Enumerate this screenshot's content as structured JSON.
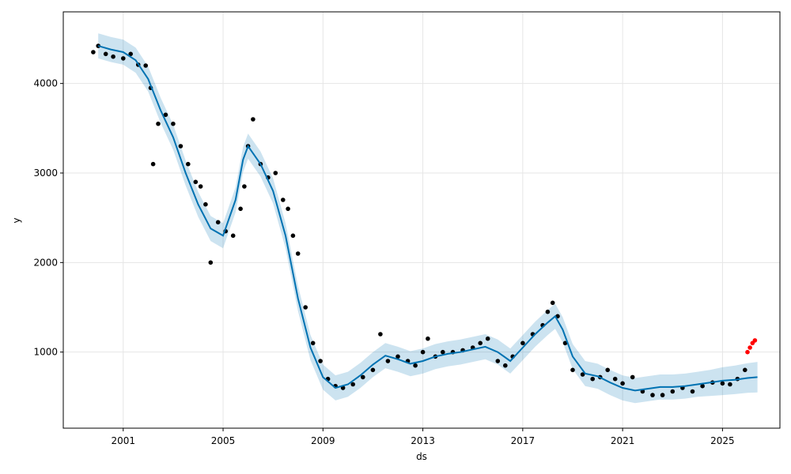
{
  "chart_data": {
    "type": "scatter",
    "xlabel": "ds",
    "ylabel": "y",
    "xlim": [
      1998.6,
      2027.3
    ],
    "ylim": [
      150,
      4800
    ],
    "grid": true,
    "x_ticks": [
      2001,
      2005,
      2009,
      2013,
      2017,
      2021,
      2025
    ],
    "x_tick_labels": [
      "2001",
      "2005",
      "2009",
      "2013",
      "2017",
      "2021",
      "2025"
    ],
    "y_ticks": [
      1000,
      2000,
      3000,
      4000
    ],
    "y_tick_labels": [
      "1000",
      "2000",
      "3000",
      "4000"
    ],
    "colors": {
      "observed": "#000000",
      "forecast_line": "#0072B2",
      "uncertainty_band": "#0072B2",
      "recent_points": "#ff0000",
      "grid": "#e6e6e6"
    },
    "series": [
      {
        "role": "forecast",
        "x": [
          2000.0,
          2000.5,
          2001.0,
          2001.5,
          2002.0,
          2002.5,
          2003.0,
          2003.5,
          2004.0,
          2004.5,
          2005.0,
          2005.5,
          2005.8,
          2006.0,
          2006.5,
          2007.0,
          2007.5,
          2008.0,
          2008.5,
          2009.0,
          2009.5,
          2010.0,
          2010.5,
          2011.0,
          2011.5,
          2012.0,
          2012.5,
          2013.0,
          2013.5,
          2014.0,
          2014.5,
          2015.0,
          2015.5,
          2016.0,
          2016.5,
          2017.0,
          2017.5,
          2018.0,
          2018.3,
          2018.6,
          2019.0,
          2019.5,
          2020.0,
          2020.5,
          2021.0,
          2021.5,
          2022.0,
          2022.5,
          2023.0,
          2023.5,
          2024.0,
          2024.5,
          2025.0,
          2025.5,
          2026.0,
          2026.4
        ],
        "y": [
          4420,
          4380,
          4350,
          4260,
          4050,
          3700,
          3400,
          3000,
          2650,
          2380,
          2300,
          2700,
          3150,
          3300,
          3100,
          2800,
          2300,
          1600,
          1050,
          720,
          600,
          640,
          740,
          860,
          960,
          920,
          870,
          900,
          950,
          980,
          1000,
          1030,
          1060,
          1000,
          900,
          1050,
          1200,
          1330,
          1400,
          1250,
          950,
          760,
          730,
          660,
          600,
          570,
          590,
          610,
          610,
          620,
          640,
          660,
          680,
          690,
          710,
          720
        ]
      },
      {
        "role": "uncertainty",
        "x": [
          2000.0,
          2000.5,
          2001.0,
          2001.5,
          2002.0,
          2002.5,
          2003.0,
          2003.5,
          2004.0,
          2004.5,
          2005.0,
          2005.5,
          2005.8,
          2006.0,
          2006.5,
          2007.0,
          2007.5,
          2008.0,
          2008.5,
          2009.0,
          2009.5,
          2010.0,
          2010.5,
          2011.0,
          2011.5,
          2012.0,
          2012.5,
          2013.0,
          2013.5,
          2014.0,
          2014.5,
          2015.0,
          2015.5,
          2016.0,
          2016.5,
          2017.0,
          2017.5,
          2018.0,
          2018.3,
          2018.6,
          2019.0,
          2019.5,
          2020.0,
          2020.5,
          2021.0,
          2021.5,
          2022.0,
          2022.5,
          2023.0,
          2023.5,
          2024.0,
          2024.5,
          2025.0,
          2025.5,
          2026.0,
          2026.4
        ],
        "lower": [
          4280,
          4240,
          4210,
          4120,
          3910,
          3560,
          3260,
          2860,
          2510,
          2240,
          2160,
          2560,
          3010,
          3160,
          2960,
          2660,
          2160,
          1460,
          910,
          580,
          460,
          500,
          600,
          720,
          820,
          780,
          730,
          760,
          810,
          840,
          860,
          890,
          920,
          860,
          760,
          910,
          1060,
          1190,
          1260,
          1110,
          810,
          620,
          590,
          520,
          460,
          430,
          450,
          470,
          470,
          480,
          500,
          510,
          520,
          530,
          545,
          550
        ],
        "upper": [
          4560,
          4520,
          4490,
          4400,
          4190,
          3840,
          3540,
          3140,
          2790,
          2520,
          2440,
          2840,
          3290,
          3440,
          3240,
          2940,
          2440,
          1740,
          1190,
          860,
          740,
          780,
          880,
          1000,
          1100,
          1060,
          1010,
          1040,
          1090,
          1120,
          1140,
          1170,
          1200,
          1140,
          1040,
          1190,
          1340,
          1470,
          1540,
          1390,
          1090,
          900,
          870,
          800,
          740,
          710,
          730,
          750,
          750,
          760,
          780,
          800,
          830,
          850,
          875,
          890
        ]
      },
      {
        "role": "observed",
        "x": [
          1999.8,
          2000.0,
          2000.3,
          2000.6,
          2001.0,
          2001.3,
          2001.6,
          2001.9,
          2002.1,
          2002.2,
          2002.4,
          2002.7,
          2003.0,
          2003.3,
          2003.6,
          2003.9,
          2004.1,
          2004.3,
          2004.5,
          2004.8,
          2005.1,
          2005.4,
          2005.7,
          2005.85,
          2006.0,
          2006.2,
          2006.5,
          2006.8,
          2007.1,
          2007.4,
          2007.6,
          2007.8,
          2008.0,
          2008.3,
          2008.6,
          2008.9,
          2009.2,
          2009.5,
          2009.8,
          2010.2,
          2010.6,
          2011.0,
          2011.3,
          2011.6,
          2012.0,
          2012.4,
          2012.7,
          2013.0,
          2013.2,
          2013.5,
          2013.8,
          2014.2,
          2014.6,
          2015.0,
          2015.3,
          2015.6,
          2016.0,
          2016.3,
          2016.6,
          2017.0,
          2017.4,
          2017.8,
          2018.0,
          2018.2,
          2018.4,
          2018.7,
          2019.0,
          2019.4,
          2019.8,
          2020.1,
          2020.4,
          2020.7,
          2021.0,
          2021.4,
          2021.8,
          2022.2,
          2022.6,
          2023.0,
          2023.4,
          2023.8,
          2024.2,
          2024.6,
          2025.0,
          2025.3,
          2025.6,
          2025.9
        ],
        "y": [
          4350,
          4420,
          4330,
          4300,
          4280,
          4330,
          4210,
          4200,
          3950,
          3100,
          3550,
          3650,
          3550,
          3300,
          3100,
          2900,
          2850,
          2650,
          2000,
          2450,
          2350,
          2300,
          2600,
          2850,
          3300,
          3600,
          3100,
          2950,
          3000,
          2700,
          2600,
          2300,
          2100,
          1500,
          1100,
          900,
          700,
          620,
          600,
          640,
          720,
          800,
          1200,
          900,
          950,
          900,
          850,
          1000,
          1150,
          950,
          1000,
          1000,
          1020,
          1050,
          1100,
          1150,
          900,
          850,
          950,
          1100,
          1200,
          1300,
          1450,
          1550,
          1400,
          1100,
          800,
          750,
          700,
          720,
          800,
          700,
          650,
          720,
          560,
          520,
          520,
          560,
          600,
          560,
          620,
          660,
          650,
          640,
          700,
          800
        ]
      },
      {
        "role": "recent",
        "x": [
          2026.0,
          2026.1,
          2026.2,
          2026.3
        ],
        "y": [
          1000,
          1050,
          1100,
          1130
        ]
      }
    ]
  }
}
